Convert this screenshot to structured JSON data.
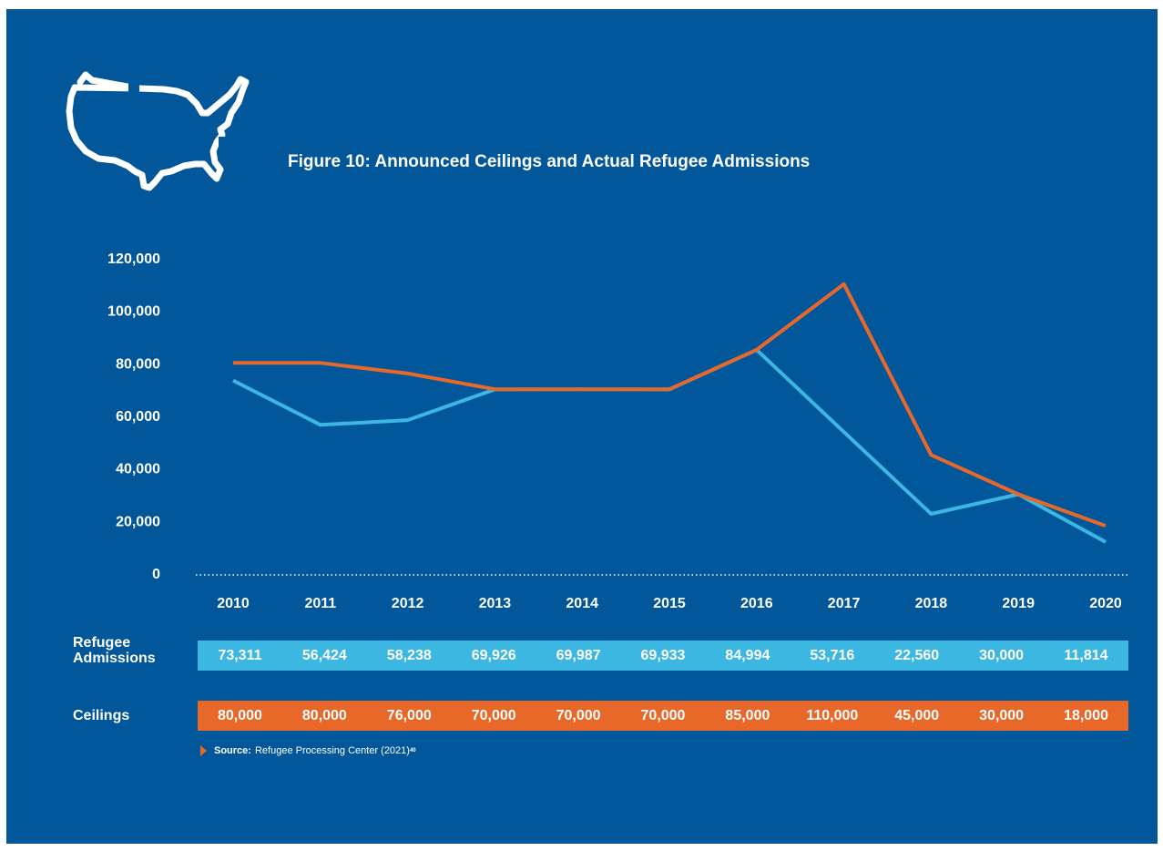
{
  "title": "Figure 10: Announced Ceilings and Actual Refugee Admissions",
  "colors": {
    "background": "#02569a",
    "admissions": "#3cb7e2",
    "ceilings": "#e8682a"
  },
  "icon": "usa-map-outline-icon",
  "chart_data": {
    "type": "line",
    "title": "Figure 10: Announced Ceilings and Actual Refugee Admissions",
    "categories": [
      "2010",
      "2011",
      "2012",
      "2013",
      "2014",
      "2015",
      "2016",
      "2017",
      "2018",
      "2019",
      "2020"
    ],
    "series": [
      {
        "name": "Refugee Admissions",
        "color": "#3cb7e2",
        "values": [
          73311,
          56424,
          58238,
          69926,
          69987,
          69933,
          84994,
          53716,
          22560,
          30000,
          11814
        ]
      },
      {
        "name": "Ceilings",
        "color": "#e8682a",
        "values": [
          80000,
          80000,
          76000,
          70000,
          70000,
          70000,
          85000,
          110000,
          45000,
          30000,
          18000
        ]
      }
    ],
    "ylim": [
      0,
      120000
    ],
    "yticks": [
      0,
      20000,
      40000,
      60000,
      80000,
      100000,
      120000
    ],
    "ytick_labels": [
      "0",
      "20,000",
      "40,000",
      "60,000",
      "80,000",
      "100,000",
      "120,000"
    ],
    "grid": false
  },
  "table": {
    "admissions": {
      "label_line1": "Refugee",
      "label_line2": "Admissions",
      "cells": [
        "73,311",
        "56,424",
        "58,238",
        "69,926",
        "69,987",
        "69,933",
        "84,994",
        "53,716",
        "22,560",
        "30,000",
        "11,814"
      ]
    },
    "ceilings": {
      "label": "Ceilings",
      "cells": [
        "80,000",
        "80,000",
        "76,000",
        "70,000",
        "70,000",
        "70,000",
        "85,000",
        "110,000",
        "45,000",
        "30,000",
        "18,000"
      ]
    }
  },
  "source": {
    "label": "Source:",
    "text": "Refugee Processing Center (2021)",
    "footnote": "40"
  }
}
